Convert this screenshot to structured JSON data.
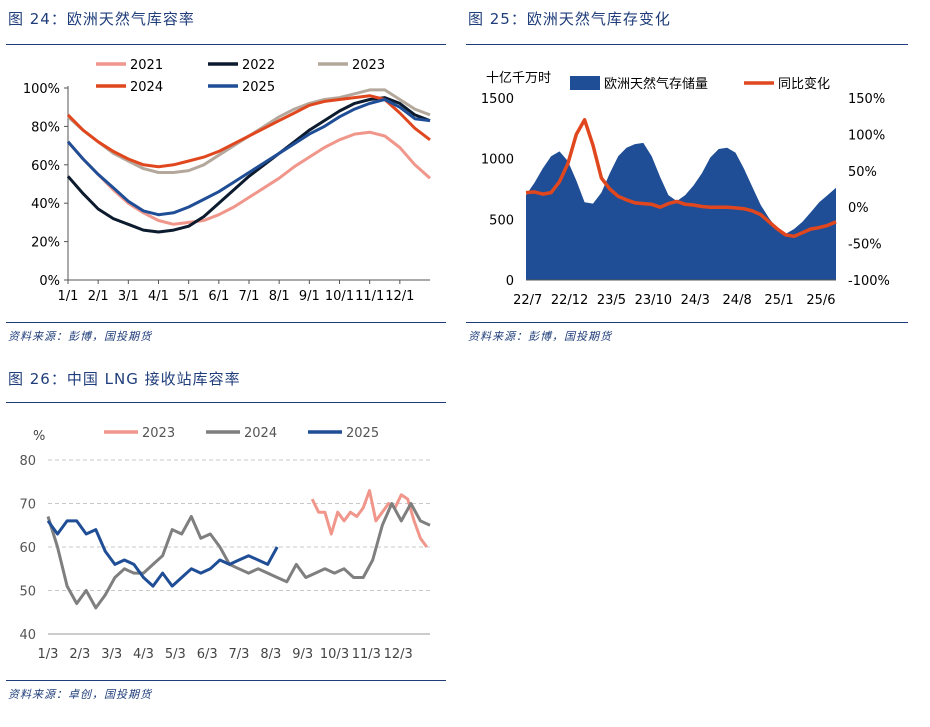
{
  "fig24": {
    "title": "图 24：欧洲天然气库容率",
    "source": "资料来源：彭博，国投期货"
  },
  "fig25": {
    "title": "图 25：欧洲天然气库存变化",
    "source": "资料来源：彭博，国投期货"
  },
  "fig26": {
    "title": "图 26：中国 LNG 接收站库容率",
    "source": "资料来源：卓创，国投期货"
  },
  "chart_data": [
    {
      "id": "c24",
      "type": "line",
      "title": "图 24：欧洲天然气库容率",
      "xlabel": "",
      "ylabel": "",
      "x_ticks": [
        "1/1",
        "2/1",
        "3/1",
        "4/1",
        "5/1",
        "6/1",
        "7/1",
        "8/1",
        "9/1",
        "10/1",
        "11/1",
        "12/1"
      ],
      "y_ticks": [
        "0%",
        "20%",
        "40%",
        "60%",
        "80%",
        "100%"
      ],
      "ylim": [
        0,
        100
      ],
      "xlim": [
        0,
        12
      ],
      "legend_position": "top",
      "series": [
        {
          "name": "2021",
          "color": "#f0968b",
          "x": [
            0,
            0.5,
            1,
            1.5,
            2,
            2.5,
            3,
            3.5,
            4,
            4.5,
            5,
            5.5,
            6,
            6.5,
            7,
            7.5,
            8,
            8.5,
            9,
            9.5,
            10,
            10.5,
            11,
            11.5,
            12
          ],
          "y": [
            72,
            63,
            55,
            47,
            40,
            35,
            31,
            29,
            30,
            31,
            34,
            38,
            43,
            48,
            53,
            59,
            64,
            69,
            73,
            76,
            77,
            75,
            69,
            60,
            53
          ]
        },
        {
          "name": "2022",
          "color": "#0d1b2e",
          "x": [
            0,
            0.5,
            1,
            1.5,
            2,
            2.5,
            3,
            3.5,
            4,
            4.5,
            5,
            5.5,
            6,
            6.5,
            7,
            7.5,
            8,
            8.5,
            9,
            9.5,
            10,
            10.5,
            11,
            11.5,
            12
          ],
          "y": [
            54,
            45,
            37,
            32,
            29,
            26,
            25,
            26,
            28,
            33,
            40,
            47,
            54,
            60,
            66,
            72,
            78,
            83,
            88,
            92,
            94,
            95,
            92,
            86,
            83
          ]
        },
        {
          "name": "2023",
          "color": "#b4a89c",
          "x": [
            0,
            0.5,
            1,
            1.5,
            2,
            2.5,
            3,
            3.5,
            4,
            4.5,
            5,
            5.5,
            6,
            6.5,
            7,
            7.5,
            8,
            8.5,
            9,
            9.5,
            10,
            10.5,
            11,
            11.5,
            12
          ],
          "y": [
            85,
            78,
            72,
            66,
            62,
            58,
            56,
            56,
            57,
            60,
            65,
            70,
            75,
            80,
            85,
            89,
            92,
            94,
            95,
            97,
            99,
            99,
            94,
            89,
            86
          ]
        },
        {
          "name": "2024",
          "color": "#e0471e",
          "x": [
            0,
            0.5,
            1,
            1.5,
            2,
            2.5,
            3,
            3.5,
            4,
            4.5,
            5,
            5.5,
            6,
            6.5,
            7,
            7.5,
            8,
            8.5,
            9,
            9.5,
            10,
            10.5,
            11,
            11.5,
            12
          ],
          "y": [
            86,
            78,
            72,
            67,
            63,
            60,
            59,
            60,
            62,
            64,
            67,
            71,
            75,
            79,
            83,
            87,
            91,
            93,
            94,
            95,
            96,
            94,
            87,
            79,
            73
          ]
        },
        {
          "name": "2025",
          "color": "#1f4e96",
          "x": [
            0,
            0.5,
            1,
            1.5,
            2,
            2.5,
            3,
            3.5,
            4,
            4.5,
            5,
            5.5,
            6,
            6.5,
            7,
            7.5,
            8,
            8.5,
            9,
            9.5,
            10,
            10.5,
            11,
            11.5,
            12
          ],
          "y": [
            72,
            63,
            55,
            48,
            41,
            36,
            34,
            35,
            38,
            42,
            46,
            51,
            56,
            61,
            66,
            71,
            76,
            80,
            85,
            89,
            92,
            94,
            90,
            84,
            83
          ]
        }
      ]
    },
    {
      "id": "c25",
      "type": "area",
      "title": "图 25：欧洲天然气库存变化",
      "ylabel_left": "十亿千万时",
      "x_ticks": [
        "22/7",
        "22/12",
        "23/5",
        "23/10",
        "24/3",
        "24/8",
        "25/1",
        "25/6"
      ],
      "y_left_ticks": [
        "0",
        "500",
        "1000",
        "1500"
      ],
      "y_right_ticks": [
        "-100%",
        "-50%",
        "0%",
        "50%",
        "100%",
        "150%"
      ],
      "ylim_left": [
        0,
        1500
      ],
      "ylim_right": [
        -100,
        150
      ],
      "xlim": [
        0,
        37
      ],
      "legend_position": "top",
      "series": [
        {
          "name": "欧洲天然气存储量",
          "axis": "left",
          "color": "#1f4e96",
          "x": [
            0,
            1,
            2,
            3,
            4,
            5,
            6,
            7,
            8,
            9,
            10,
            11,
            12,
            13,
            14,
            15,
            16,
            17,
            18,
            19,
            20,
            21,
            22,
            23,
            24,
            25,
            26,
            27,
            28,
            29,
            30,
            31,
            32,
            33,
            34,
            35,
            36,
            37
          ],
          "y": [
            700,
            800,
            920,
            1020,
            1060,
            980,
            820,
            640,
            630,
            720,
            880,
            1020,
            1090,
            1120,
            1130,
            1020,
            850,
            700,
            650,
            700,
            780,
            880,
            1010,
            1080,
            1090,
            1050,
            920,
            770,
            620,
            510,
            420,
            380,
            420,
            480,
            560,
            640,
            700,
            760
          ]
        },
        {
          "name": "同比变化",
          "axis": "right",
          "color": "#e0471e",
          "x": [
            0,
            1,
            2,
            3,
            4,
            5,
            6,
            7,
            8,
            9,
            10,
            11,
            12,
            13,
            14,
            15,
            16,
            17,
            18,
            19,
            20,
            21,
            22,
            23,
            24,
            25,
            26,
            27,
            28,
            29,
            30,
            31,
            32,
            33,
            34,
            35,
            36,
            37
          ],
          "y": [
            20,
            21,
            18,
            20,
            35,
            60,
            100,
            120,
            85,
            40,
            25,
            15,
            10,
            6,
            5,
            4,
            0,
            5,
            8,
            4,
            3,
            1,
            0,
            0,
            0,
            -1,
            -2,
            -5,
            -10,
            -20,
            -30,
            -38,
            -40,
            -35,
            -30,
            -28,
            -25,
            -20
          ]
        }
      ]
    },
    {
      "id": "c26",
      "type": "line",
      "title": "图 26：中国 LNG 接收站库容率",
      "ylabel": "%",
      "x_ticks": [
        "1/3",
        "2/3",
        "3/3",
        "4/3",
        "5/3",
        "6/3",
        "7/3",
        "8/3",
        "9/3",
        "10/3",
        "11/3",
        "12/3"
      ],
      "y_ticks": [
        "40",
        "50",
        "60",
        "70",
        "80"
      ],
      "ylim": [
        40,
        80
      ],
      "xlim": [
        0,
        12
      ],
      "grid": true,
      "legend_position": "top",
      "series": [
        {
          "name": "2023",
          "color": "#f0968b",
          "x": [
            8.3,
            8.5,
            8.7,
            8.9,
            9.1,
            9.3,
            9.5,
            9.7,
            9.9,
            10.1,
            10.3,
            10.5,
            10.7,
            10.9,
            11.1,
            11.3,
            11.5,
            11.7,
            11.9
          ],
          "y": [
            71,
            68,
            68,
            63,
            68,
            66,
            68,
            67,
            69,
            73,
            66,
            68,
            70,
            69,
            72,
            71,
            66,
            62,
            60
          ]
        },
        {
          "name": "2024",
          "color": "#7f7f7f",
          "x": [
            0,
            0.3,
            0.6,
            0.9,
            1.2,
            1.5,
            1.8,
            2.1,
            2.4,
            2.7,
            3.0,
            3.3,
            3.6,
            3.9,
            4.2,
            4.5,
            4.8,
            5.1,
            5.4,
            5.7,
            6.0,
            6.3,
            6.6,
            6.9,
            7.2,
            7.5,
            7.8,
            8.1,
            8.4,
            8.7,
            9.0,
            9.3,
            9.6,
            9.9,
            10.2,
            10.5,
            10.8,
            11.1,
            11.4,
            11.7,
            12.0
          ],
          "y": [
            67,
            60,
            51,
            47,
            50,
            46,
            49,
            53,
            55,
            54,
            54,
            56,
            58,
            64,
            63,
            67,
            62,
            63,
            60,
            56,
            55,
            54,
            55,
            54,
            53,
            52,
            56,
            53,
            54,
            55,
            54,
            55,
            53,
            53,
            57,
            65,
            70,
            66,
            70,
            66,
            65
          ]
        },
        {
          "name": "2025",
          "color": "#1f4e96",
          "x": [
            0,
            0.3,
            0.6,
            0.9,
            1.2,
            1.5,
            1.8,
            2.1,
            2.4,
            2.7,
            3.0,
            3.3,
            3.6,
            3.9,
            4.2,
            4.5,
            4.8,
            5.1,
            5.4,
            5.7,
            6.0,
            6.3,
            6.6,
            6.9,
            7.2
          ],
          "y": [
            66,
            63,
            66,
            66,
            63,
            64,
            59,
            56,
            57,
            56,
            53,
            51,
            54,
            51,
            53,
            55,
            54,
            55,
            57,
            56,
            57,
            58,
            57,
            56,
            60
          ]
        }
      ]
    }
  ]
}
